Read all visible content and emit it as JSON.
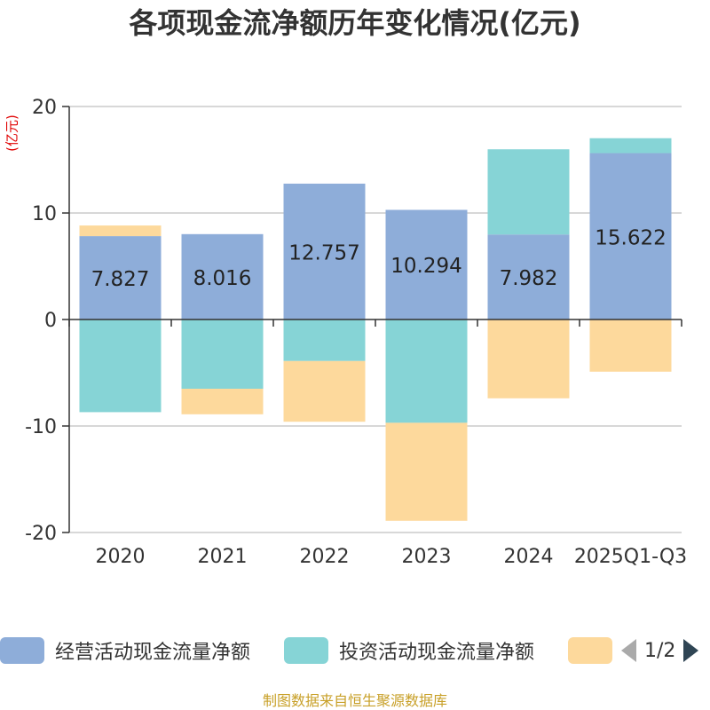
{
  "chart_data": {
    "type": "bar",
    "stacked": true,
    "title": "各项现金流净额历年变化情况(亿元)",
    "ylabel": "(亿元)",
    "ylim": [
      -20,
      20
    ],
    "yticks": [
      20,
      10,
      0,
      -10,
      -20
    ],
    "grid": true,
    "categories": [
      "2020",
      "2021",
      "2022",
      "2023",
      "2024",
      "2025Q1-Q3"
    ],
    "series": [
      {
        "name": "经营活动现金流量净额",
        "color": "#8eadd9",
        "values": [
          7.827,
          8.016,
          12.757,
          10.294,
          7.982,
          15.622
        ],
        "show_labels": true
      },
      {
        "name": "投资活动现金流量净额",
        "color": "#86d4d6",
        "values": [
          -8.7,
          -6.5,
          -3.9,
          -9.7,
          8.0,
          1.4
        ],
        "show_labels": false
      },
      {
        "name": "",
        "color": "#fdd99c",
        "values": [
          1.0,
          -2.4,
          -5.7,
          -9.2,
          -7.4,
          -4.9
        ],
        "show_labels": false
      }
    ]
  },
  "legend": {
    "items": [
      {
        "label": "经营活动现金流量净额",
        "color": "#8eadd9"
      },
      {
        "label": "投资活动现金流量净额",
        "color": "#86d4d6"
      },
      {
        "label": "",
        "color": "#fdd99c"
      }
    ],
    "page": "1/2"
  },
  "source": "制图数据来自恒生聚源数据库"
}
